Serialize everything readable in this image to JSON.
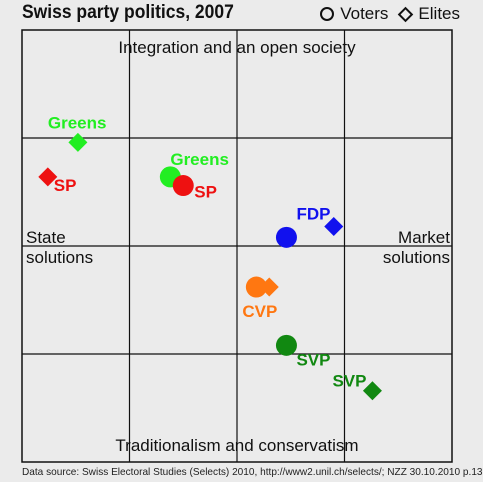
{
  "title": "Swiss party politics, 2007",
  "legend": {
    "voters": "Voters",
    "elites": "Elites"
  },
  "source": "Data source: Swiss Electoral Studies (Selects) 2010, http://www2.unil.ch/selects/; NZZ 30.10.2010 p.13",
  "chart_data": {
    "type": "scatter",
    "title": "Swiss party politics, 2007",
    "xlim": [
      -1,
      1
    ],
    "ylim": [
      -1,
      1
    ],
    "grid": true,
    "legend_position": "top-right",
    "axis_labels": {
      "top": "Integration and an open society",
      "bottom": "Traditionalism and conservatism",
      "left_line1": "State",
      "left_line2": "solutions",
      "right_line1": "Market",
      "right_line2": "solutions"
    },
    "points": [
      {
        "label": "Greens",
        "group": "elites",
        "marker": "diamond",
        "color": "#22ee22",
        "x": -0.74,
        "y": 0.48
      },
      {
        "label": "SP",
        "group": "elites",
        "marker": "diamond",
        "color": "#ee1111",
        "x": -0.88,
        "y": 0.32
      },
      {
        "label": "Greens",
        "group": "voters",
        "marker": "circle",
        "color": "#22ee22",
        "x": -0.31,
        "y": 0.32
      },
      {
        "label": "SP",
        "group": "voters",
        "marker": "circle",
        "color": "#ee1111",
        "x": -0.25,
        "y": 0.28
      },
      {
        "label": "FDP",
        "group": "voters",
        "marker": "circle",
        "color": "#1111ee",
        "x": 0.23,
        "y": 0.04
      },
      {
        "label": "FDP",
        "group": "elites",
        "marker": "diamond",
        "color": "#1111ee",
        "x": 0.45,
        "y": 0.09
      },
      {
        "label": "CVP",
        "group": "voters",
        "marker": "circle",
        "color": "#ff7711",
        "x": 0.09,
        "y": -0.19
      },
      {
        "label": "CVP",
        "group": "elites",
        "marker": "diamond",
        "color": "#ff7711",
        "x": 0.15,
        "y": -0.19
      },
      {
        "label": "SVP",
        "group": "voters",
        "marker": "circle",
        "color": "#118811",
        "x": 0.23,
        "y": -0.46
      },
      {
        "label": "SVP",
        "group": "elites",
        "marker": "diamond",
        "color": "#118811",
        "x": 0.63,
        "y": -0.67
      }
    ]
  }
}
